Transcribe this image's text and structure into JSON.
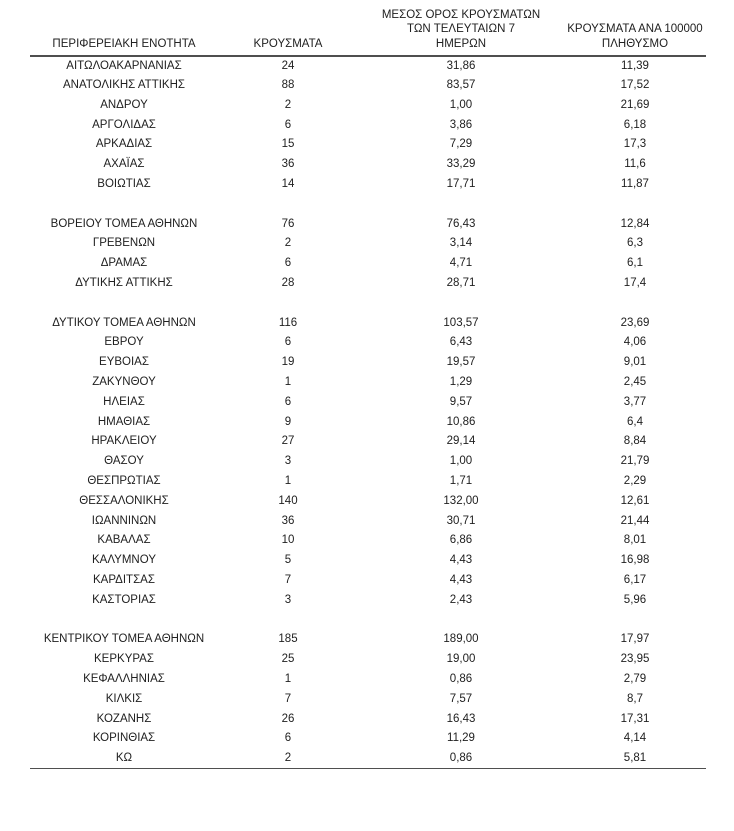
{
  "table": {
    "headers": {
      "region": "ΠΕΡΙΦΕΡΕΙΑΚΗ ΕΝΟΤΗΤΑ",
      "cases": "ΚΡΟΥΣΜΑΤΑ",
      "avg7_lines": [
        "ΜΕΣΟΣ ΟΡΟΣ ΚΡΟΥΣΜΑΤΩΝ",
        "ΤΩΝ ΤΕΛΕΥΤΑΙΩΝ 7",
        "ΗΜΕΡΩΝ"
      ],
      "per100k_lines": [
        "ΚΡΟΥΣΜΑΤΑ ΑΝΑ 100000",
        "ΠΛΗΘΥΣΜΟ"
      ]
    },
    "rows": [
      {
        "region": "ΑΙΤΩΛΟΑΚΑΡΝΑΝΙΑΣ",
        "cases": "24",
        "avg7": "31,86",
        "per100k": "11,39"
      },
      {
        "region": "ΑΝΑΤΟΛΙΚΗΣ ΑΤΤΙΚΗΣ",
        "cases": "88",
        "avg7": "83,57",
        "per100k": "17,52"
      },
      {
        "region": "ΑΝΔΡΟΥ",
        "cases": "2",
        "avg7": "1,00",
        "per100k": "21,69"
      },
      {
        "region": "ΑΡΓΟΛΙΔΑΣ",
        "cases": "6",
        "avg7": "3,86",
        "per100k": "6,18"
      },
      {
        "region": "ΑΡΚΑΔΙΑΣ",
        "cases": "15",
        "avg7": "7,29",
        "per100k": "17,3"
      },
      {
        "region": "ΑΧΑΪΑΣ",
        "cases": "36",
        "avg7": "33,29",
        "per100k": "11,6"
      },
      {
        "region": "ΒΟΙΩΤΙΑΣ",
        "cases": "14",
        "avg7": "17,71",
        "per100k": "11,87"
      },
      {
        "blank": true
      },
      {
        "region": "ΒΟΡΕΙΟΥ ΤΟΜΕΑ ΑΘΗΝΩΝ",
        "cases": "76",
        "avg7": "76,43",
        "per100k": "12,84"
      },
      {
        "region": "ΓΡΕΒΕΝΩΝ",
        "cases": "2",
        "avg7": "3,14",
        "per100k": "6,3"
      },
      {
        "region": "ΔΡΑΜΑΣ",
        "cases": "6",
        "avg7": "4,71",
        "per100k": "6,1"
      },
      {
        "region": "ΔΥΤΙΚΗΣ ΑΤΤΙΚΗΣ",
        "cases": "28",
        "avg7": "28,71",
        "per100k": "17,4"
      },
      {
        "blank": true
      },
      {
        "region": "ΔΥΤΙΚΟΥ ΤΟΜΕΑ ΑΘΗΝΩΝ",
        "cases": "116",
        "avg7": "103,57",
        "per100k": "23,69"
      },
      {
        "region": "ΕΒΡΟΥ",
        "cases": "6",
        "avg7": "6,43",
        "per100k": "4,06"
      },
      {
        "region": "ΕΥΒΟΙΑΣ",
        "cases": "19",
        "avg7": "19,57",
        "per100k": "9,01"
      },
      {
        "region": "ΖΑΚΥΝΘΟΥ",
        "cases": "1",
        "avg7": "1,29",
        "per100k": "2,45"
      },
      {
        "region": "ΗΛΕΙΑΣ",
        "cases": "6",
        "avg7": "9,57",
        "per100k": "3,77"
      },
      {
        "region": "ΗΜΑΘΙΑΣ",
        "cases": "9",
        "avg7": "10,86",
        "per100k": "6,4"
      },
      {
        "region": "ΗΡΑΚΛΕΙΟΥ",
        "cases": "27",
        "avg7": "29,14",
        "per100k": "8,84"
      },
      {
        "region": "ΘΑΣΟΥ",
        "cases": "3",
        "avg7": "1,00",
        "per100k": "21,79"
      },
      {
        "region": "ΘΕΣΠΡΩΤΙΑΣ",
        "cases": "1",
        "avg7": "1,71",
        "per100k": "2,29"
      },
      {
        "region": "ΘΕΣΣΑΛΟΝΙΚΗΣ",
        "cases": "140",
        "avg7": "132,00",
        "per100k": "12,61"
      },
      {
        "region": "ΙΩΑΝΝΙΝΩΝ",
        "cases": "36",
        "avg7": "30,71",
        "per100k": "21,44"
      },
      {
        "region": "ΚΑΒΑΛΑΣ",
        "cases": "10",
        "avg7": "6,86",
        "per100k": "8,01"
      },
      {
        "region": "ΚΑΛΥΜΝΟΥ",
        "cases": "5",
        "avg7": "4,43",
        "per100k": "16,98"
      },
      {
        "region": "ΚΑΡΔΙΤΣΑΣ",
        "cases": "7",
        "avg7": "4,43",
        "per100k": "6,17"
      },
      {
        "region": "ΚΑΣΤΟΡΙΑΣ",
        "cases": "3",
        "avg7": "2,43",
        "per100k": "5,96"
      },
      {
        "blank": true
      },
      {
        "region": "ΚΕΝΤΡΙΚΟΥ ΤΟΜΕΑ ΑΘΗΝΩΝ",
        "cases": "185",
        "avg7": "189,00",
        "per100k": "17,97"
      },
      {
        "region": "ΚΕΡΚΥΡΑΣ",
        "cases": "25",
        "avg7": "19,00",
        "per100k": "23,95"
      },
      {
        "region": "ΚΕΦΑΛΛΗΝΙΑΣ",
        "cases": "1",
        "avg7": "0,86",
        "per100k": "2,79"
      },
      {
        "region": "ΚΙΛΚΙΣ",
        "cases": "7",
        "avg7": "7,57",
        "per100k": "8,7"
      },
      {
        "region": "ΚΟΖΑΝΗΣ",
        "cases": "26",
        "avg7": "16,43",
        "per100k": "17,31"
      },
      {
        "region": "ΚΟΡΙΝΘΙΑΣ",
        "cases": "6",
        "avg7": "11,29",
        "per100k": "4,14"
      },
      {
        "region": "ΚΩ",
        "cases": "2",
        "avg7": "0,86",
        "per100k": "5,81"
      }
    ]
  }
}
